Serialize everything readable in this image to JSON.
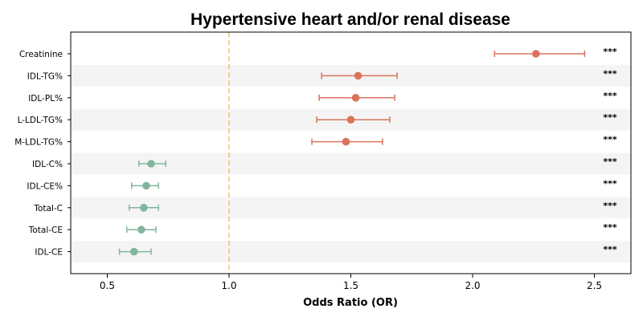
{
  "chart_data": {
    "type": "forest",
    "title": "Hypertensive heart and/or renal disease",
    "xlabel": "Odds Ratio (OR)",
    "xlim": [
      0.35,
      2.65
    ],
    "xticks": [
      0.5,
      1.0,
      1.5,
      2.0,
      2.5
    ],
    "xtick_labels": [
      "0.5",
      "1.0",
      "1.5",
      "2.0",
      "2.5"
    ],
    "reference_line": 1.0,
    "grid": false,
    "colors": {
      "increase": "#d9735a",
      "decrease": "#82b59c",
      "reference": "#f3c272",
      "band": "#f4f4f4"
    },
    "rows": [
      {
        "label": "Creatinine",
        "or": 2.26,
        "lo": 2.09,
        "hi": 2.46,
        "sig": "***",
        "direction": "increase"
      },
      {
        "label": "IDL-TG%",
        "or": 1.53,
        "lo": 1.38,
        "hi": 1.69,
        "sig": "***",
        "direction": "increase"
      },
      {
        "label": "IDL-PL%",
        "or": 1.52,
        "lo": 1.37,
        "hi": 1.68,
        "sig": "***",
        "direction": "increase"
      },
      {
        "label": "L-LDL-TG%",
        "or": 1.5,
        "lo": 1.36,
        "hi": 1.66,
        "sig": "***",
        "direction": "increase"
      },
      {
        "label": "M-LDL-TG%",
        "or": 1.48,
        "lo": 1.34,
        "hi": 1.63,
        "sig": "***",
        "direction": "increase"
      },
      {
        "label": "IDL-C%",
        "or": 0.68,
        "lo": 0.63,
        "hi": 0.74,
        "sig": "***",
        "direction": "decrease"
      },
      {
        "label": "IDL-CE%",
        "or": 0.66,
        "lo": 0.6,
        "hi": 0.71,
        "sig": "***",
        "direction": "decrease"
      },
      {
        "label": "Total-C",
        "or": 0.65,
        "lo": 0.59,
        "hi": 0.71,
        "sig": "***",
        "direction": "decrease"
      },
      {
        "label": "Total-CE",
        "or": 0.64,
        "lo": 0.58,
        "hi": 0.7,
        "sig": "***",
        "direction": "decrease"
      },
      {
        "label": "IDL-CE",
        "or": 0.61,
        "lo": 0.55,
        "hi": 0.68,
        "sig": "***",
        "direction": "decrease"
      }
    ]
  }
}
